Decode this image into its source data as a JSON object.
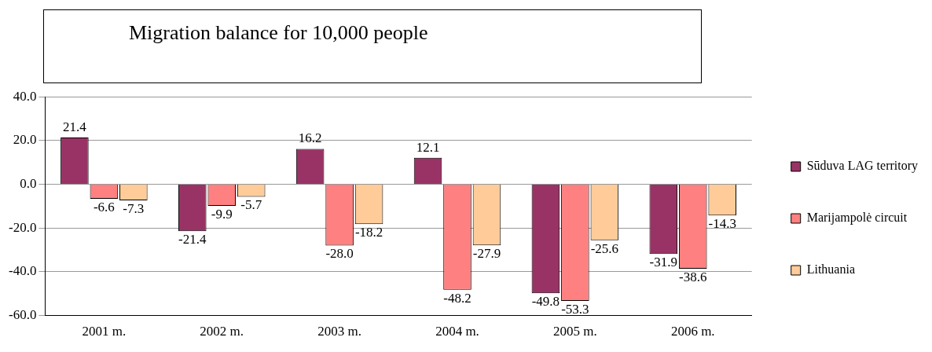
{
  "chart_data": {
    "type": "bar",
    "title": "Migration balance for 10,000 people",
    "categories": [
      "2001 m.",
      "2002 m.",
      "2003 m.",
      "2004 m.",
      "2005 m.",
      "2006 m."
    ],
    "series": [
      {
        "name": "Sūduva LAG territory",
        "color": "#993366",
        "values": [
          21.4,
          -21.4,
          16.2,
          12.1,
          -49.8,
          -31.9
        ],
        "value_labels": [
          "21.4",
          "-21.4",
          "16.2",
          "12.1",
          "-49.8",
          "-31.9"
        ]
      },
      {
        "name": "Marijampolė circuit",
        "color": "#ff8080",
        "values": [
          -6.6,
          -9.9,
          -28.0,
          -48.2,
          -53.3,
          -38.6
        ],
        "value_labels": [
          "-6.6",
          "-9.9",
          "-28.0",
          "-48.2",
          "-53.3",
          "-38.6"
        ]
      },
      {
        "name": "Lithuania",
        "color": "#ffcc99",
        "values": [
          -7.3,
          -5.7,
          -18.2,
          -27.9,
          -25.6,
          -14.3
        ],
        "value_labels": [
          "-7.3",
          "-5.7",
          "-18.2",
          "-27.9",
          "-25.6",
          "-14.3"
        ]
      }
    ],
    "ylim": [
      -60,
      40
    ],
    "yticks": [
      {
        "value": -60,
        "label": "-60.0"
      },
      {
        "value": -40,
        "label": "-40.0"
      },
      {
        "value": -20,
        "label": "-20.0"
      },
      {
        "value": 0,
        "label": "0.0"
      },
      {
        "value": 20,
        "label": "20.0"
      },
      {
        "value": 40,
        "label": "40.0"
      }
    ],
    "grid": "y",
    "legend": "right"
  }
}
